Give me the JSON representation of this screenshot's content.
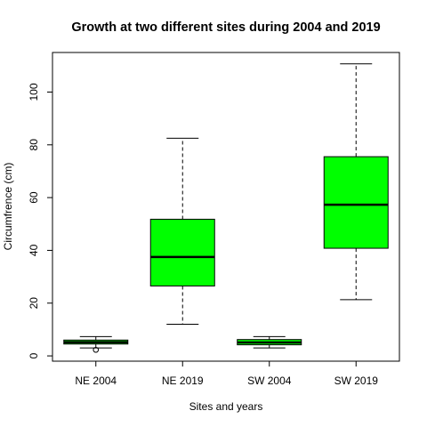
{
  "chart_data": {
    "type": "boxplot",
    "title": "Growth at two different sites during 2004 and 2019",
    "xlabel": "Sites and years",
    "ylabel": "Circumfrence (cm)",
    "categories": [
      "NE 2004",
      "NE 2019",
      "SW 2004",
      "SW 2019"
    ],
    "ylim": [
      -2,
      115
    ],
    "yticks": [
      0,
      20,
      40,
      60,
      80,
      100
    ],
    "grid": false,
    "legend": "none",
    "box_color": "#00ff00",
    "boxes": [
      {
        "category": "NE 2004",
        "min": 3,
        "q1": 4.5,
        "median": 5.2,
        "q3": 6,
        "max": 7.3,
        "outliers": [
          2.3
        ]
      },
      {
        "category": "NE 2019",
        "min": 12,
        "q1": 26.5,
        "median": 37.5,
        "q3": 51.8,
        "max": 82.5,
        "outliers": []
      },
      {
        "category": "SW 2004",
        "min": 3,
        "q1": 4.2,
        "median": 5.1,
        "q3": 6.2,
        "max": 7.3,
        "outliers": []
      },
      {
        "category": "SW 2019",
        "min": 21.3,
        "q1": 40.8,
        "median": 57.3,
        "q3": 75.5,
        "max": 110.7,
        "outliers": []
      }
    ]
  }
}
